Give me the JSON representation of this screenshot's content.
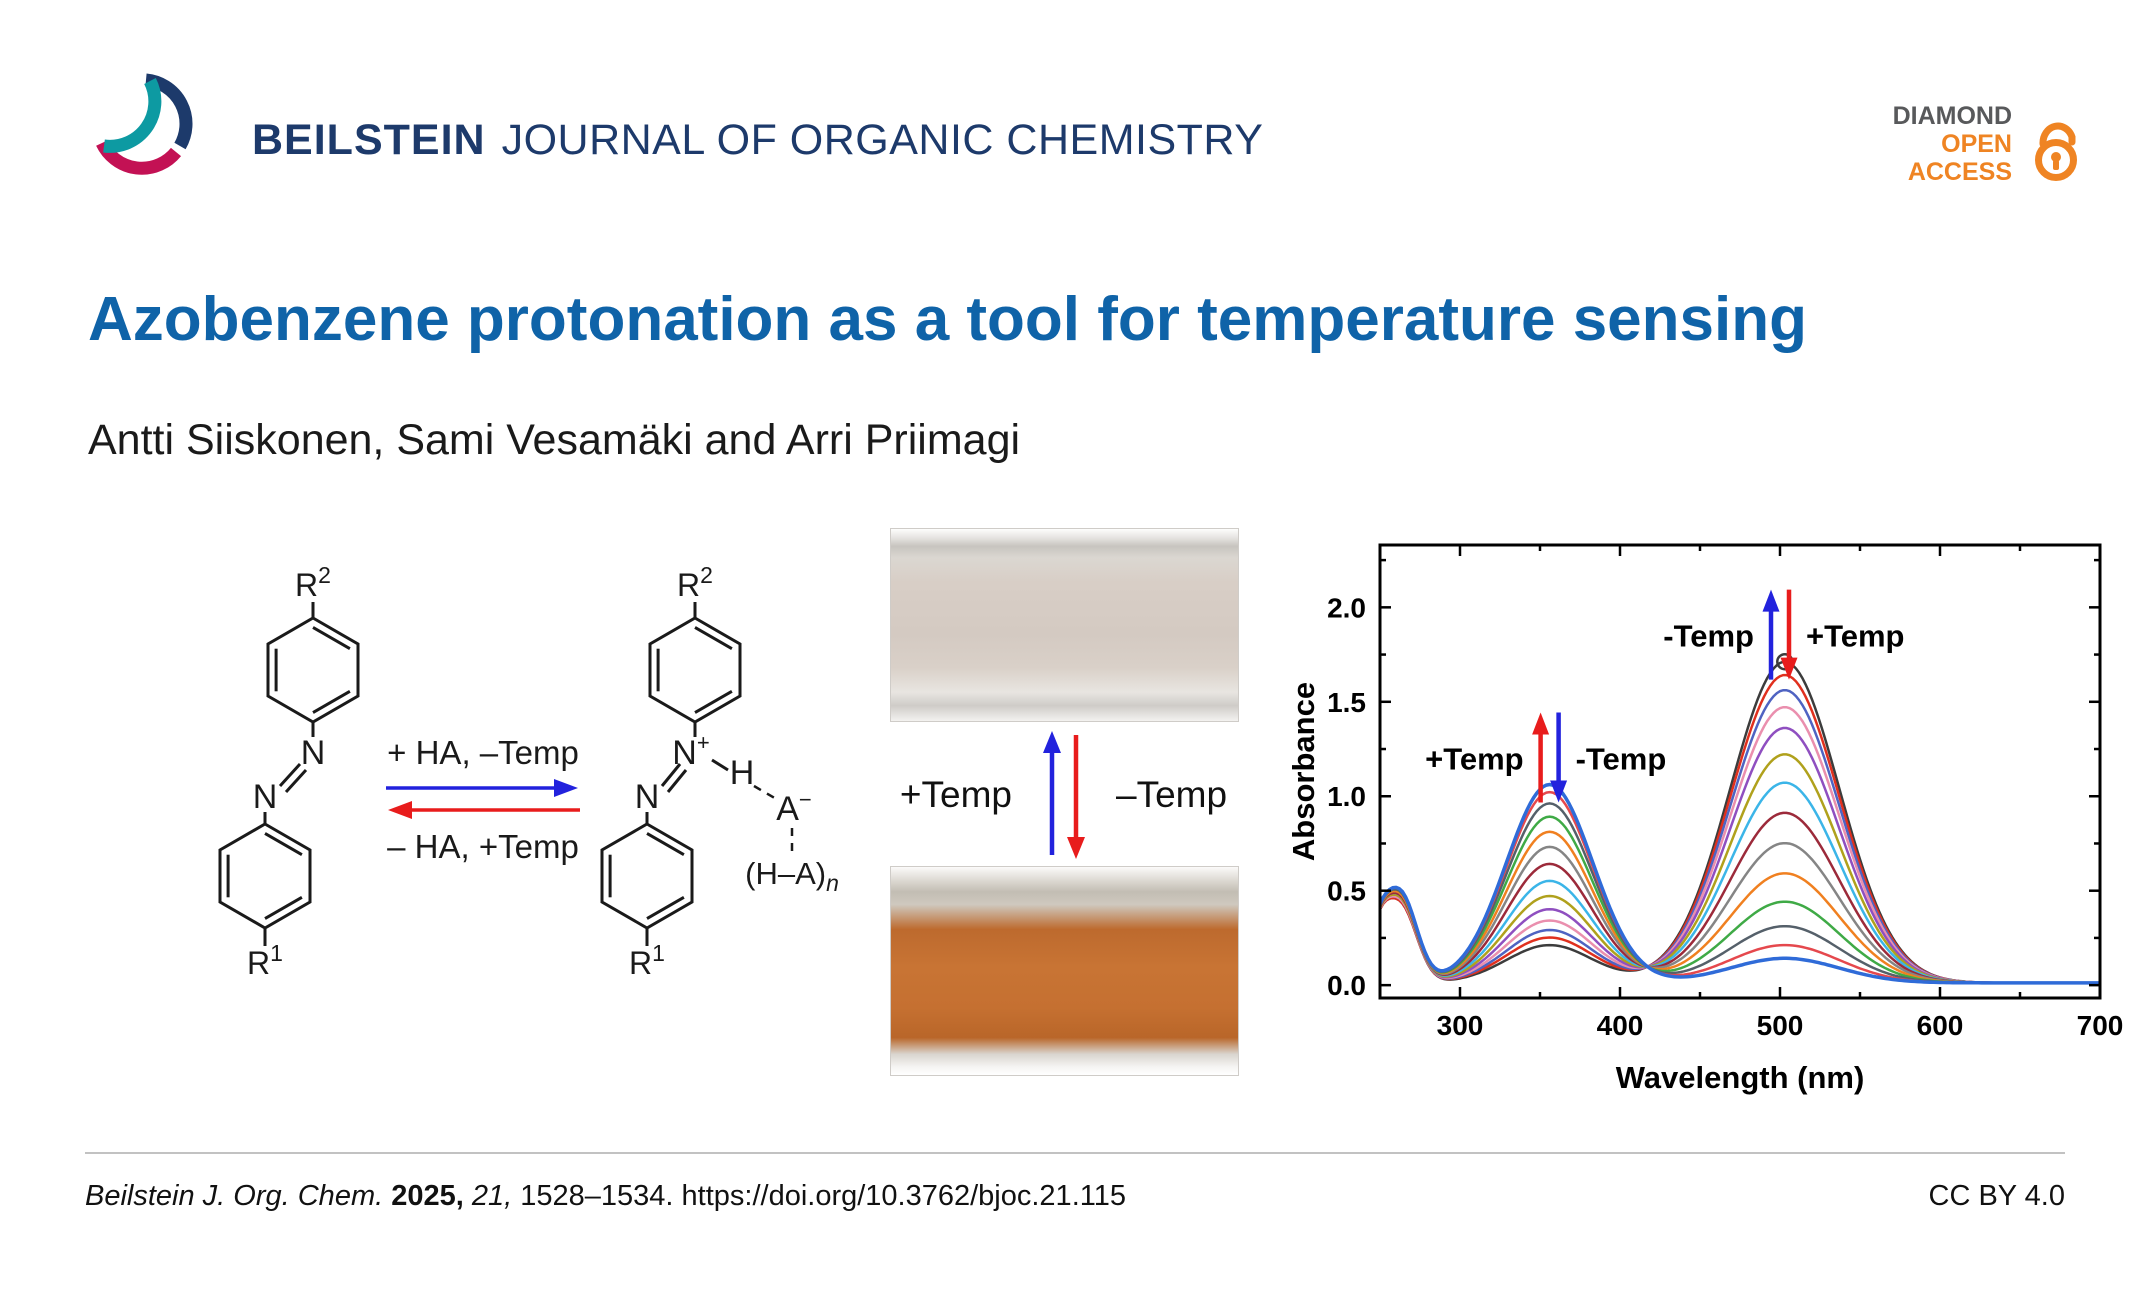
{
  "header": {
    "journal_bold": "BEILSTEIN",
    "journal_rest": "JOURNAL OF ORGANIC CHEMISTRY",
    "badge_diamond": "DIAMOND",
    "badge_open": "OPEN",
    "badge_access": "ACCESS",
    "colors": {
      "navy": "#1d3a6b",
      "orange": "#ef8423",
      "gray": "#58595b"
    }
  },
  "title": "Azobenzene protonation as a tool for temperature sensing",
  "authors": "Antti Siiskonen, Sami Vesamäki and Arri Priimagi",
  "scheme": {
    "r_symbol": "R",
    "sup_2": "2",
    "sup_1": "1",
    "n_symbol": "N",
    "sup_plus": "+",
    "h_symbol": "H",
    "a_symbol": "A",
    "sup_minus": "−",
    "ha_group": "(H–A)",
    "sub_n": "n",
    "forward_conditions": "+ HA, –Temp",
    "reverse_conditions": "– HA, +Temp",
    "arrow_blue": "#2222dd",
    "arrow_red": "#e81c1c"
  },
  "photos": {
    "plus_temp": "+Temp",
    "minus_temp": "–Temp"
  },
  "chart_data": {
    "type": "line",
    "title": "",
    "xlabel": "Wavelength (nm)",
    "ylabel": "Absorbance",
    "xlim": [
      250,
      700
    ],
    "ylim": [
      -0.068,
      2.33
    ],
    "x_ticks": [
      300,
      400,
      500,
      600,
      700
    ],
    "x_minor_ticks": [
      350,
      450,
      550,
      650
    ],
    "y_ticks": [
      0.0,
      0.5,
      1.0,
      1.5,
      2.0
    ],
    "y_minor_ticks": [
      0.25,
      0.75,
      1.25,
      1.75,
      2.25
    ],
    "grid": false,
    "legend": "none",
    "colors": {
      "blue": "#2222dd",
      "red": "#e81c1c"
    },
    "bands": {
      "peak1_nm": 503,
      "peak1_sigma": 34,
      "peak2_nm": 356,
      "peak2_sigma": 27,
      "uv_nm": 263,
      "uv_sigma": 10,
      "edge_nm": 249,
      "edge_sigma": 7,
      "edge_amp": 0.22,
      "baseline": 0.012
    },
    "annotations": [
      {
        "left": "-Temp",
        "right": "+Temp",
        "up_color": "blue",
        "down_color": "red",
        "x_nm": 500,
        "y_abs": 1.85
      },
      {
        "left": "+Temp",
        "right": "-Temp",
        "up_color": "red",
        "down_color": "blue",
        "x_nm": 356,
        "y_abs": 1.2
      }
    ],
    "series": [
      {
        "color": "#3c3c3c",
        "peak_503_abs": 1.7,
        "peak_356_abs": 0.2,
        "uv_263_abs": 0.4,
        "stroke_width": 2.5
      },
      {
        "color": "#e0301e",
        "peak_503_abs": 1.63,
        "peak_356_abs": 0.24,
        "uv_263_abs": 0.4,
        "stroke_width": 2.5
      },
      {
        "color": "#4f63c2",
        "peak_503_abs": 1.55,
        "peak_356_abs": 0.28,
        "uv_263_abs": 0.41,
        "stroke_width": 2.5
      },
      {
        "color": "#ea8fae",
        "peak_503_abs": 1.46,
        "peak_356_abs": 0.33,
        "uv_263_abs": 0.41,
        "stroke_width": 2.5
      },
      {
        "color": "#8f4fc0",
        "peak_503_abs": 1.35,
        "peak_356_abs": 0.39,
        "uv_263_abs": 0.42,
        "stroke_width": 2.5
      },
      {
        "color": "#b0a11c",
        "peak_503_abs": 1.21,
        "peak_356_abs": 0.46,
        "uv_263_abs": 0.42,
        "stroke_width": 2.5
      },
      {
        "color": "#3bb5e8",
        "peak_503_abs": 1.06,
        "peak_356_abs": 0.54,
        "uv_263_abs": 0.43,
        "stroke_width": 2.5
      },
      {
        "color": "#9c2a3a",
        "peak_503_abs": 0.9,
        "peak_356_abs": 0.63,
        "uv_263_abs": 0.43,
        "stroke_width": 2.5
      },
      {
        "color": "#858585",
        "peak_503_abs": 0.74,
        "peak_356_abs": 0.72,
        "uv_263_abs": 0.44,
        "stroke_width": 2.5
      },
      {
        "color": "#f08020",
        "peak_503_abs": 0.58,
        "peak_356_abs": 0.8,
        "uv_263_abs": 0.44,
        "stroke_width": 2.5
      },
      {
        "color": "#3faa46",
        "peak_503_abs": 0.43,
        "peak_356_abs": 0.88,
        "uv_263_abs": 0.45,
        "stroke_width": 2.5
      },
      {
        "color": "#55606a",
        "peak_503_abs": 0.3,
        "peak_356_abs": 0.95,
        "uv_263_abs": 0.45,
        "stroke_width": 2.5
      },
      {
        "color": "#e5484d",
        "peak_503_abs": 0.2,
        "peak_356_abs": 1.01,
        "uv_263_abs": 0.46,
        "stroke_width": 2.5
      },
      {
        "color": "#2f6bd8",
        "peak_503_abs": 0.13,
        "peak_356_abs": 1.05,
        "uv_263_abs": 0.46,
        "stroke_width": 3.5
      }
    ]
  },
  "footer": {
    "journal_abbrev": "Beilstein J. Org. Chem.",
    "year": "2025,",
    "volume": "21,",
    "pages_doi": "1528–1534. https://doi.org/10.3762/bjoc.21.115",
    "license": "CC BY 4.0"
  }
}
